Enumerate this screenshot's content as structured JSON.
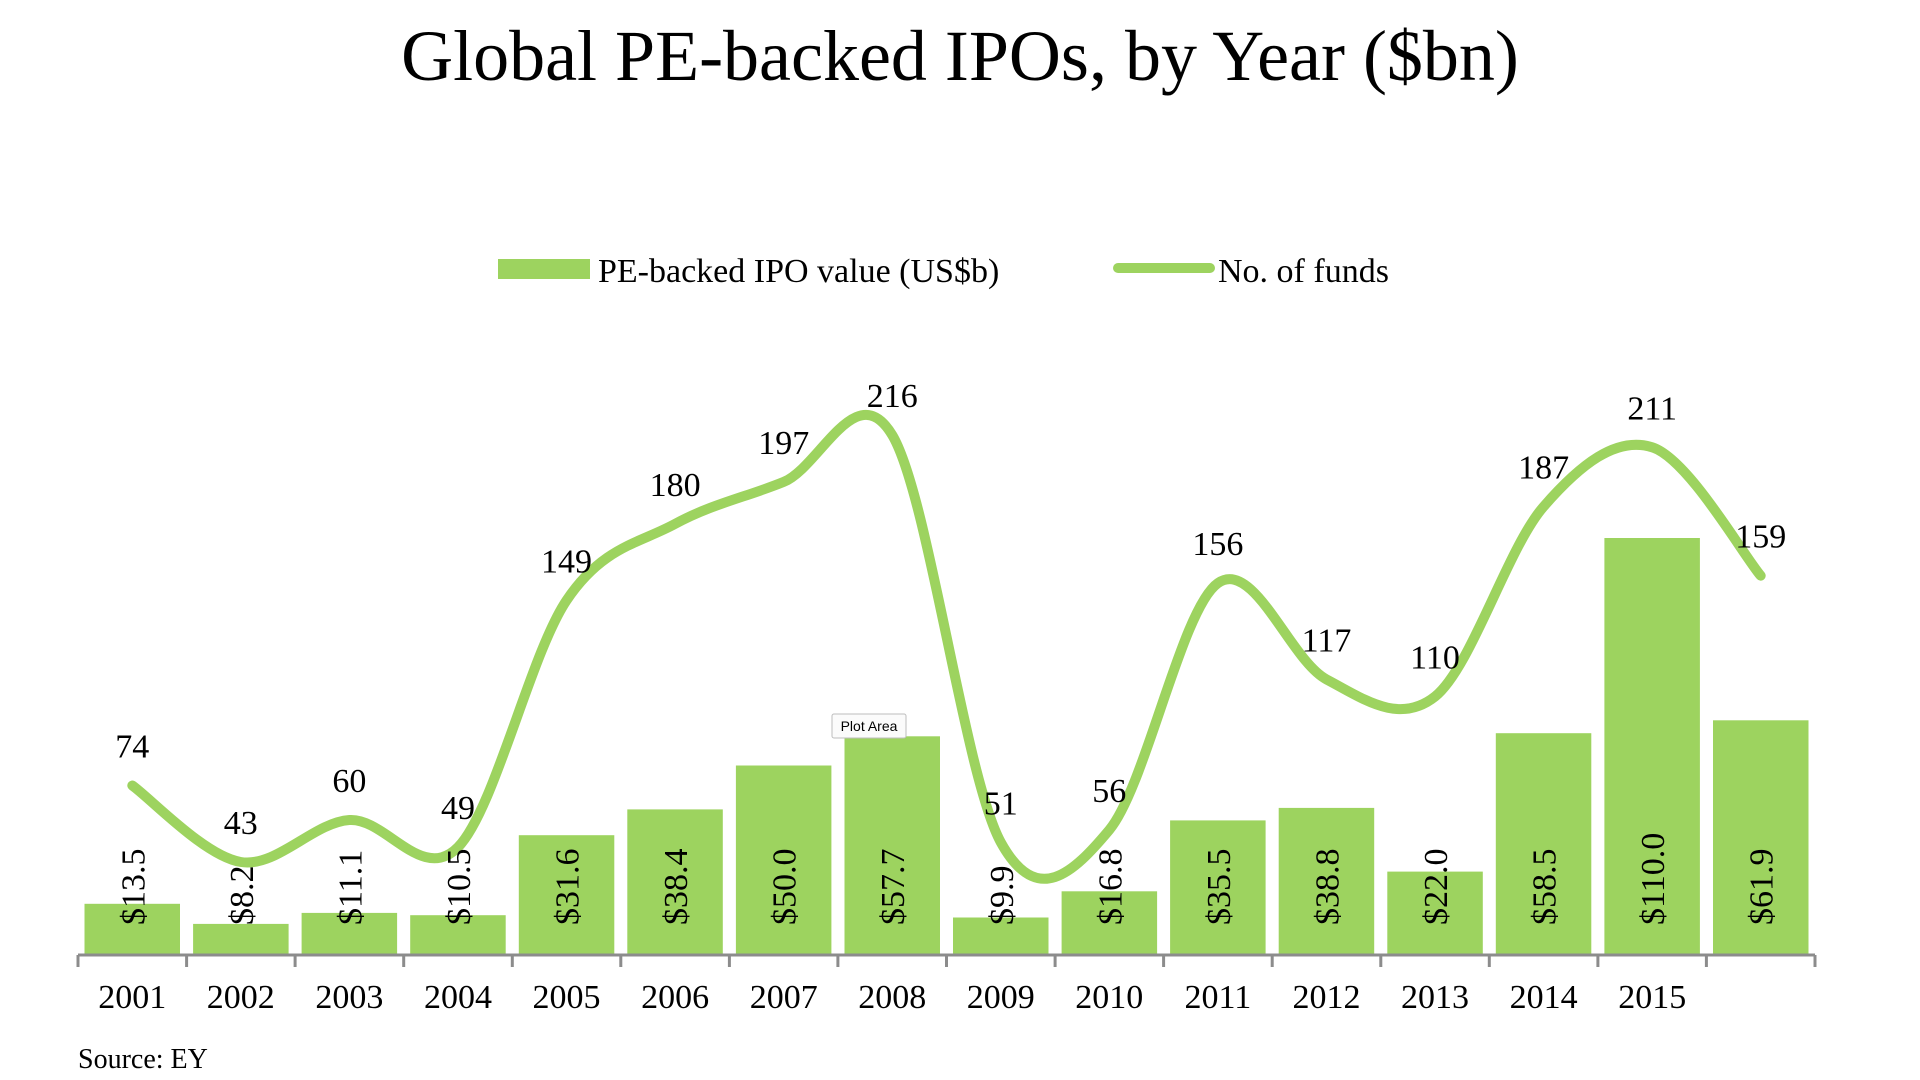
{
  "chart_data": {
    "type": "bar",
    "title": "Global PE-backed IPOs, by Year ($bn)",
    "categories": [
      "2001",
      "2002",
      "2003",
      "2004",
      "2005",
      "2006",
      "2007",
      "2008",
      "2009",
      "2010",
      "2011",
      "2012",
      "2013",
      "2014",
      "2015",
      ""
    ],
    "series": [
      {
        "name": "PE-backed IPO value (US$b)",
        "type": "bar",
        "values": [
          13.5,
          8.2,
          11.1,
          10.5,
          31.6,
          38.4,
          50.0,
          57.7,
          9.9,
          16.8,
          35.5,
          38.8,
          22.0,
          58.5,
          110.0,
          61.9
        ],
        "labels": [
          "$13.5",
          "$8.2",
          "$11.1",
          "$10.5",
          "$31.6",
          "$38.4",
          "$50.0",
          "$57.7",
          "$9.9",
          "$16.8",
          "$35.5",
          "$38.8",
          "$22.0",
          "$58.5",
          "$110.0",
          "$61.9"
        ]
      },
      {
        "name": "No. of funds",
        "type": "line",
        "smooth": true,
        "values": [
          74,
          43,
          60,
          49,
          149,
          180,
          197,
          216,
          51,
          56,
          156,
          117,
          110,
          187,
          211,
          159
        ],
        "labels": [
          "74",
          "43",
          "60",
          "49",
          "149",
          "180",
          "197",
          "216",
          "51",
          "56",
          "156",
          "117",
          "110",
          "187",
          "211",
          "159"
        ]
      }
    ],
    "legend_position": "top-center",
    "grid": false,
    "color": "#9dd35f",
    "source": "Source: EY",
    "tooltip": "Plot Area"
  }
}
